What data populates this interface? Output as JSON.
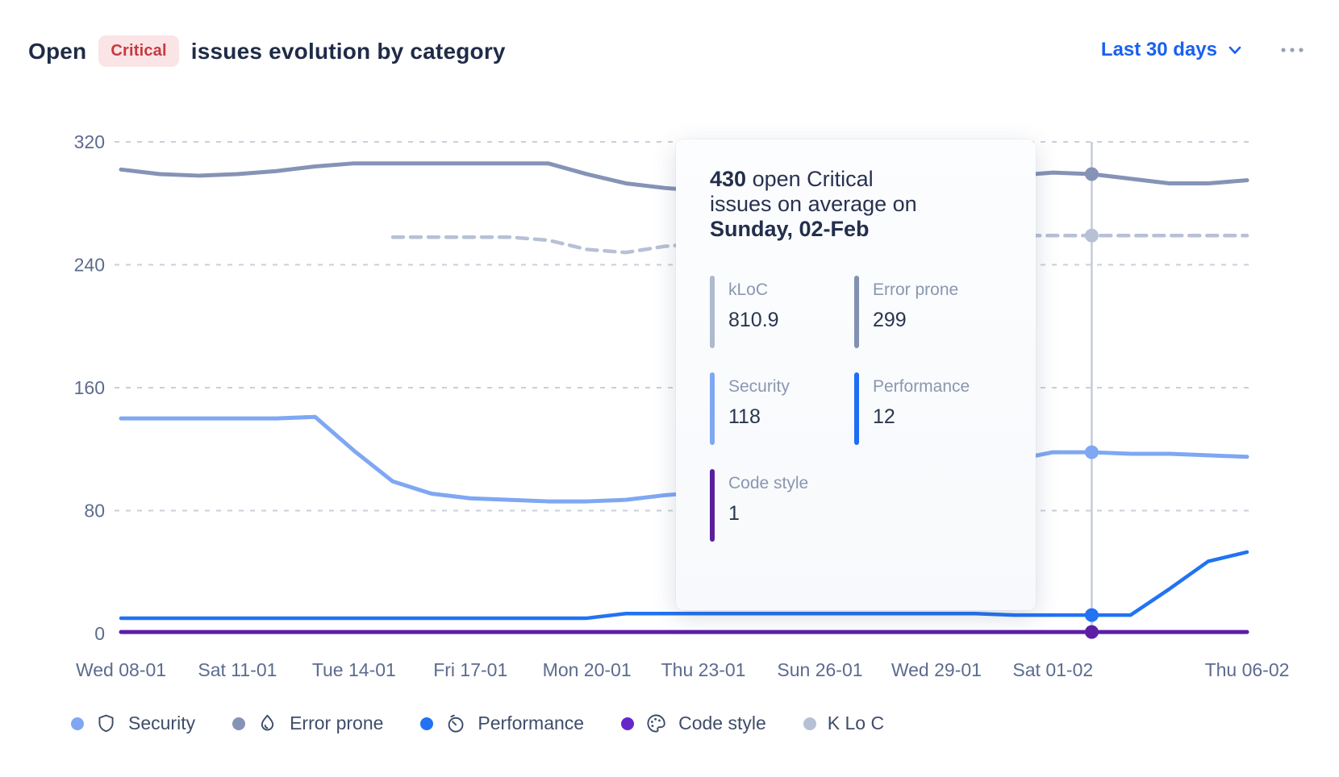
{
  "header": {
    "title_prefix": "Open",
    "badge": "Critical",
    "title_suffix": "issues evolution by category",
    "range_selector": "Last 30 days",
    "range_selector_icon": "chevron-down-icon",
    "more_menu_icon": "ellipsis-icon",
    "accent_color": "#1760F2",
    "badge_bg": "#FBE4E6",
    "badge_color": "#C43A41"
  },
  "tooltip": {
    "heading_bold": "430",
    "heading_line1_rest": " open Critical",
    "heading_line2": "issues on average on",
    "heading_date": "Sunday, 02-Feb",
    "entries": [
      {
        "label": "kLoC",
        "value": "810.9",
        "color": "#AFBACF"
      },
      {
        "label": "Error prone",
        "value": "299",
        "color": "#8290B2"
      },
      {
        "label": "Security",
        "value": "118",
        "color": "#7FA7F3"
      },
      {
        "label": "Performance",
        "value": "12",
        "color": "#1E6EF5"
      },
      {
        "label": "Code style",
        "value": "1",
        "color": "#5B1E9E"
      }
    ]
  },
  "legend": {
    "items": [
      {
        "label": "Security",
        "color": "#7FA7F3",
        "icon": "shield-icon"
      },
      {
        "label": "Error prone",
        "color": "#8593B6",
        "icon": "flame-icon"
      },
      {
        "label": "Performance",
        "color": "#2272F3",
        "icon": "stopwatch-icon"
      },
      {
        "label": "Code style",
        "color": "#6527C9",
        "icon": "palette-icon"
      },
      {
        "label": "K Lo C",
        "color": "#B6C1D6",
        "icon": null
      }
    ]
  },
  "chart_data": {
    "type": "line",
    "title": "Open Critical issues evolution by category",
    "x_tick_labels": [
      "Wed 08-01",
      "Sat 11-01",
      "Tue 14-01",
      "Fri 17-01",
      "Mon 20-01",
      "Thu 23-01",
      "Sun 26-01",
      "Wed 29-01",
      "Sat 01-02",
      "Thu 06-02"
    ],
    "x_tick_days": [
      0,
      3,
      6,
      9,
      12,
      15,
      18,
      21,
      24,
      29
    ],
    "y_ticks": [
      0,
      80,
      160,
      240,
      320
    ],
    "ylim": [
      0,
      340
    ],
    "grid": "dashed-horizontal",
    "legend_position": "bottom",
    "highlight_day": 25,
    "highlight_date": "Sunday, 02-Feb",
    "highlight_total_open_critical": 430,
    "note": "kLoC series is plotted against the left axis after scaling; its real value at the highlighted day is 810.9 kLoC",
    "series": [
      {
        "name": "Error prone",
        "color": "#8593B6",
        "width": 5,
        "start_day": 0,
        "values": [
          302,
          299,
          298,
          299,
          301,
          304,
          306,
          306,
          306,
          306,
          306,
          306,
          299,
          293,
          290,
          288,
          287,
          287,
          288,
          290,
          293,
          295,
          297,
          298,
          300,
          299,
          296,
          293,
          293,
          295
        ]
      },
      {
        "name": "kLoC",
        "color": "#B6C1D6",
        "width": 4.5,
        "dash": "13 9",
        "start_day": 7,
        "values": [
          258,
          258,
          258,
          258,
          256,
          250,
          248,
          252,
          254,
          256,
          257,
          258,
          258,
          258,
          258,
          258,
          259,
          259,
          259,
          259,
          259,
          259,
          259
        ]
      },
      {
        "name": "Security",
        "color": "#7FA7F3",
        "width": 5,
        "start_day": 0,
        "values": [
          140,
          140,
          140,
          140,
          140,
          141,
          119,
          99,
          91,
          88,
          87,
          86,
          86,
          87,
          90,
          92,
          94,
          97,
          99,
          102,
          105,
          108,
          110,
          113,
          118,
          118,
          117,
          117,
          116,
          115
        ]
      },
      {
        "name": "Performance",
        "color": "#2272F3",
        "width": 4.5,
        "start_day": 0,
        "values": [
          10,
          10,
          10,
          10,
          10,
          10,
          10,
          10,
          10,
          10,
          10,
          10,
          10,
          13,
          13,
          13,
          13,
          13,
          13,
          13,
          13,
          13,
          13,
          12,
          12,
          12,
          12,
          29,
          47,
          53
        ]
      },
      {
        "name": "Code style",
        "color": "#5C1EA6",
        "width": 5,
        "start_day": 0,
        "values": [
          1,
          1,
          1,
          1,
          1,
          1,
          1,
          1,
          1,
          1,
          1,
          1,
          1,
          1,
          1,
          1,
          1,
          1,
          1,
          1,
          1,
          1,
          1,
          1,
          1,
          1,
          1,
          1,
          1,
          1
        ]
      }
    ]
  }
}
